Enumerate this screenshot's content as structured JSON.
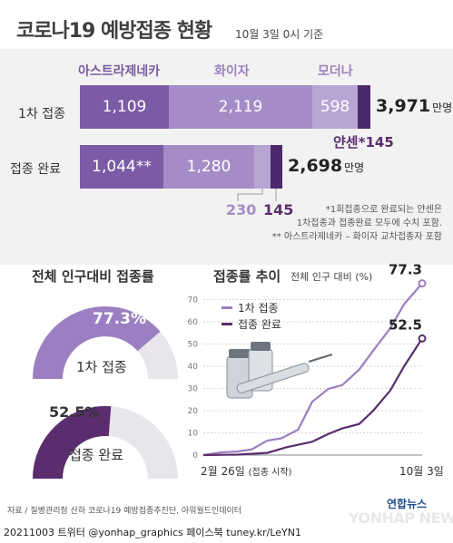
{
  "title": "코로나19 예방접종 현황",
  "date_ref": "10월 3일 0시 기준",
  "vaccines": {
    "az": "아스트라제네카",
    "pfizer": "화이자",
    "moderna": "모더나",
    "janssen": "얀센*"
  },
  "rows": {
    "first": "1차 접종",
    "complete": "접종 완료"
  },
  "unit": "만명",
  "first_dose": {
    "az": "1,109",
    "pfizer": "2,119",
    "moderna": "598",
    "total": "3,971",
    "janssen": "145"
  },
  "complete_dose": {
    "az": "1,044**",
    "pfizer": "1,280",
    "moderna": "230",
    "janssen": "145",
    "total": "2,698"
  },
  "notes": [
    "*1회접종으로 완료되는 얀센은",
    "1차접종과 접종완료 모두에 수치 포함.",
    "** 아스트라제네카 – 화이자 교차접종자 포함"
  ],
  "rate_section": {
    "title": "전체 인구대비 접종률",
    "first_pct": "77.3%",
    "first_label": "1차 접종",
    "complete_pct": "52.5%",
    "complete_label": "접종 완료"
  },
  "trend_section": {
    "title": "접종률 추이",
    "subtitle": "전체 인구 대비 (%)",
    "legend_first": "1차 접종",
    "legend_complete": "접종 완료",
    "start_label": "2월 26일",
    "start_note": "(접종 시작)",
    "end_label": "10월 3일"
  },
  "source": "자료 / 질병관리청 산하 코로나19 예방접종추진단, 아워월드인데이터",
  "logo": "연합뉴스",
  "watermark": "YONHAP NEWS",
  "footer": "20211003 트위터 @yonhap_graphics  페이스북 tuney.kr/LeYN1",
  "colors": {
    "az": "#7b5aa6",
    "pfizer": "#a68cc6",
    "moderna": "#b9a5d4",
    "janssen": "#4b2a6b",
    "complete": "#5b2d6e",
    "first_light": "#9b7fc2",
    "rest": "#e8e6ea"
  },
  "chart_data": [
    {
      "type": "bar",
      "categories": [
        "1차 접종",
        "접종 완료"
      ],
      "series": [
        {
          "name": "아스트라제네카",
          "values": [
            1109,
            1044
          ]
        },
        {
          "name": "화이자",
          "values": [
            2119,
            1280
          ]
        },
        {
          "name": "모더나",
          "values": [
            598,
            230
          ]
        },
        {
          "name": "얀센*",
          "values": [
            145,
            145
          ]
        }
      ],
      "totals": [
        3971,
        2698
      ],
      "stacked": true,
      "orientation": "horizontal"
    },
    {
      "type": "pie",
      "title": "전체 인구대비 접종률",
      "slices": [
        {
          "label": "1차 접종",
          "value": 77.3
        },
        {
          "label": "접종 완료",
          "value": 52.5
        }
      ]
    },
    {
      "type": "line",
      "title": "접종률 추이",
      "ylabel": "전체 인구 대비 (%)",
      "ylim": [
        0,
        80
      ],
      "yticks": [
        0,
        10,
        20,
        30,
        40,
        50,
        60,
        70
      ],
      "xlim": [
        "2021-02-26",
        "2021-10-03"
      ],
      "series": [
        {
          "name": "1차 접종",
          "x": [
            "2021-02-26",
            "2021-03-15",
            "2021-04-01",
            "2021-04-15",
            "2021-05-01",
            "2021-05-15",
            "2021-06-01",
            "2021-06-15",
            "2021-07-01",
            "2021-07-15",
            "2021-08-01",
            "2021-08-15",
            "2021-09-01",
            "2021-09-15",
            "2021-10-03"
          ],
          "y": [
            0,
            1.2,
            1.6,
            2.5,
            6.5,
            7.5,
            11.5,
            24,
            29.8,
            31.5,
            38.5,
            47,
            57,
            68,
            77.3
          ]
        },
        {
          "name": "접종 완료",
          "x": [
            "2021-02-26",
            "2021-04-01",
            "2021-05-01",
            "2021-05-20",
            "2021-06-15",
            "2021-07-01",
            "2021-07-15",
            "2021-08-01",
            "2021-08-15",
            "2021-09-01",
            "2021-09-15",
            "2021-10-03"
          ],
          "y": [
            0,
            0.2,
            1,
            3.5,
            6,
            9.5,
            12,
            14,
            20,
            29,
            40,
            52.5
          ]
        }
      ],
      "end_labels": [
        "77.3",
        "52.5"
      ]
    }
  ]
}
